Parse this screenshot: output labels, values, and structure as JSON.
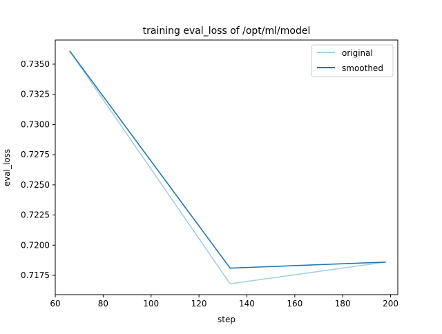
{
  "chart_data": {
    "type": "line",
    "title": "training eval_loss of /opt/ml/model",
    "xlabel": "step",
    "ylabel": "eval_loss",
    "xlim": [
      60,
      203
    ],
    "ylim": [
      0.7159,
      0.737
    ],
    "xticks": [
      60,
      80,
      100,
      120,
      140,
      160,
      180,
      200
    ],
    "xtick_labels": [
      "60",
      "80",
      "100",
      "120",
      "140",
      "160",
      "180",
      "200"
    ],
    "yticks": [
      0.7175,
      0.72,
      0.7225,
      0.725,
      0.7275,
      0.73,
      0.7325,
      0.735
    ],
    "ytick_labels": [
      "0.7175",
      "0.7200",
      "0.7225",
      "0.7250",
      "0.7275",
      "0.7300",
      "0.7325",
      "0.7350"
    ],
    "grid": false,
    "legend_position": "top-right",
    "series": [
      {
        "name": "original",
        "color": "#a6cee3",
        "x": [
          66,
          133,
          198
        ],
        "y": [
          0.7361,
          0.7168,
          0.7186
        ]
      },
      {
        "name": "smoothed",
        "color": "#1f78b4",
        "x": [
          66,
          133,
          198
        ],
        "y": [
          0.7361,
          0.7181,
          0.7186
        ]
      }
    ]
  }
}
